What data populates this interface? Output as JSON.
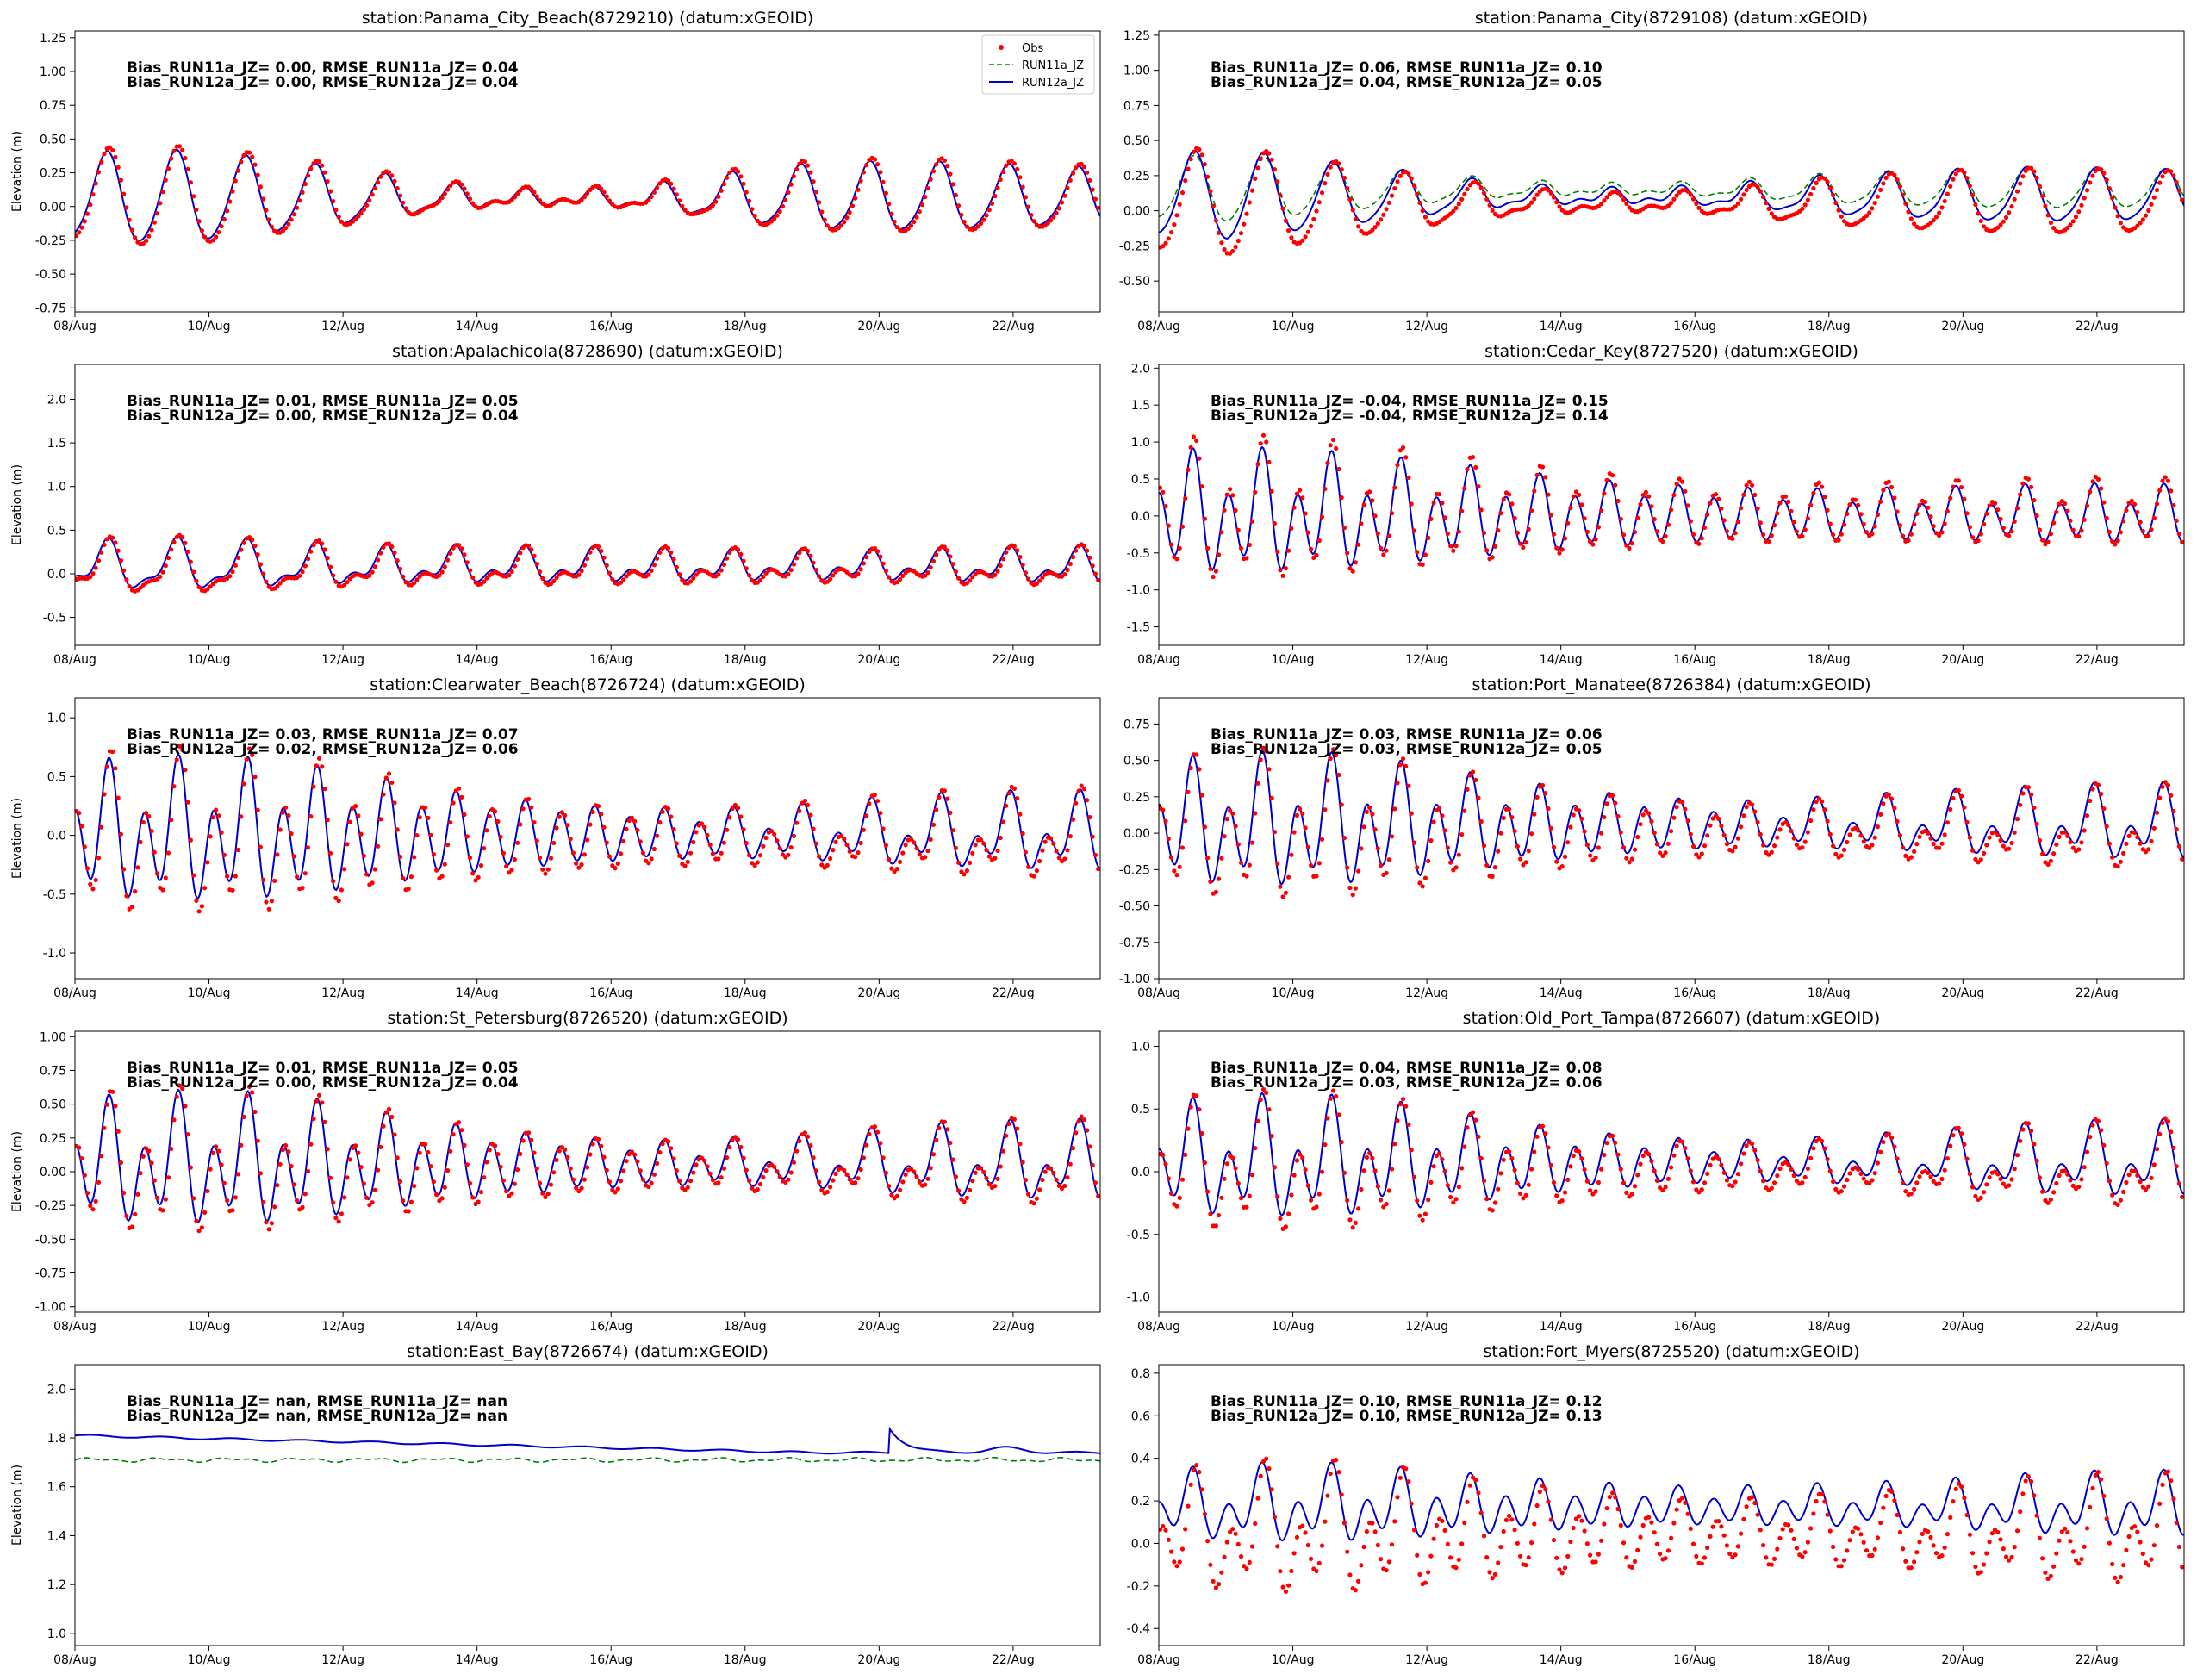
{
  "figure": {
    "series_styles": [
      {
        "key": "obs",
        "label": "Obs",
        "color": "#ff0000",
        "style": "dots"
      },
      {
        "key": "run11a",
        "label": "RUN11a_JZ",
        "color": "#008000",
        "style": "dashed"
      },
      {
        "key": "run12a",
        "label": "RUN12a_JZ",
        "color": "#0000cc",
        "style": "solid"
      }
    ],
    "legend": {
      "placement": "upper right of first panel",
      "entries": [
        "Obs",
        "RUN11a_JZ",
        "RUN12a_JZ"
      ]
    }
  },
  "chart_data": [
    {
      "type": "line",
      "title": "station:Panama_City_Beach(8729210) (datum:xGEOID)",
      "ylabel": "Elevation (m)",
      "xlim": [
        0,
        15.3
      ],
      "x_tick_labels": [
        "08/Aug",
        "10/Aug",
        "12/Aug",
        "14/Aug",
        "16/Aug",
        "18/Aug",
        "20/Aug",
        "22/Aug"
      ],
      "ylim": [
        -0.78,
        1.3
      ],
      "yticks": [
        "-0.75",
        "-0.50",
        "-0.25",
        "0.00",
        "0.25",
        "0.50",
        "0.75",
        "1.00",
        "1.25"
      ],
      "stats": [
        "Bias_RUN11a_JZ=  0.00, RMSE_RUN11a_JZ=  0.04",
        "Bias_RUN12a_JZ=  0.00, RMSE_RUN12a_JZ=  0.04"
      ],
      "show_legend": true,
      "model": {
        "mean": 0.06,
        "diurnal_amp": [
          0.3,
          0.34,
          0.32,
          0.26,
          0.2,
          0.12,
          0.06,
          0.04,
          0.06,
          0.12,
          0.2,
          0.24,
          0.25,
          0.24,
          0.22,
          0.2
        ],
        "semi_amp": 0.035,
        "phase": 0.45
      },
      "run11_offset": 0.0,
      "obs": {
        "offset": 0.0,
        "amp_scale": 1.08,
        "phase_shift": 0.03
      }
    },
    {
      "type": "line",
      "title": "station:Panama_City(8729108) (datum:xGEOID)",
      "ylabel": "",
      "xlim": [
        0,
        15.3
      ],
      "x_tick_labels": [
        "08/Aug",
        "10/Aug",
        "12/Aug",
        "14/Aug",
        "16/Aug",
        "18/Aug",
        "20/Aug",
        "22/Aug"
      ],
      "ylim": [
        -0.72,
        1.28
      ],
      "yticks": [
        "-0.50",
        "-0.25",
        "0.00",
        "0.25",
        "0.50",
        "0.75",
        "1.00",
        "1.25"
      ],
      "stats": [
        "Bias_RUN11a_JZ=  0.06, RMSE_RUN11a_JZ=  0.10",
        "Bias_RUN12a_JZ=  0.04, RMSE_RUN12a_JZ=  0.05"
      ],
      "show_legend": false,
      "model": {
        "mean": 0.1,
        "diurnal_amp": [
          0.28,
          0.32,
          0.26,
          0.2,
          0.14,
          0.08,
          0.05,
          0.04,
          0.06,
          0.1,
          0.14,
          0.16,
          0.18,
          0.19,
          0.18,
          0.17
        ],
        "semi_amp": 0.03,
        "phase": 0.5
      },
      "run11_offset": 0.05,
      "run11_amp_scale": 0.75,
      "obs": {
        "offset": -0.05,
        "amp_scale": 1.2,
        "phase_shift": 0.04
      }
    },
    {
      "type": "line",
      "title": "station:Apalachicola(8728690) (datum:xGEOID)",
      "ylabel": "Elevation (m)",
      "xlim": [
        0,
        15.3
      ],
      "x_tick_labels": [
        "08/Aug",
        "10/Aug",
        "12/Aug",
        "14/Aug",
        "16/Aug",
        "18/Aug",
        "20/Aug",
        "22/Aug"
      ],
      "ylim": [
        -0.82,
        2.4
      ],
      "yticks": [
        "-0.5",
        "0.0",
        "0.5",
        "1.0",
        "1.5",
        "2.0"
      ],
      "stats": [
        "Bias_RUN11a_JZ=  0.01, RMSE_RUN11a_JZ=  0.05",
        "Bias_RUN12a_JZ=  0.00, RMSE_RUN12a_JZ=  0.04"
      ],
      "show_legend": false,
      "model": {
        "mean": 0.08,
        "diurnal_amp": [
          0.22,
          0.26,
          0.25,
          0.22,
          0.18,
          0.16,
          0.15,
          0.15,
          0.14,
          0.13,
          0.12,
          0.11,
          0.12,
          0.14,
          0.15,
          0.16
        ],
        "semi_amp": 0.1,
        "phase": 0.45
      },
      "run11_offset": 0.0,
      "obs": {
        "offset": -0.02,
        "amp_scale": 1.1,
        "phase_shift": 0.03
      }
    },
    {
      "type": "line",
      "title": "station:Cedar_Key(8727520) (datum:xGEOID)",
      "ylabel": "",
      "xlim": [
        0,
        15.3
      ],
      "x_tick_labels": [
        "08/Aug",
        "10/Aug",
        "12/Aug",
        "14/Aug",
        "16/Aug",
        "18/Aug",
        "20/Aug",
        "22/Aug"
      ],
      "ylim": [
        -1.75,
        2.05
      ],
      "yticks": [
        "-1.5",
        "-1.0",
        "-0.5",
        "0.0",
        "0.5",
        "1.0",
        "1.5",
        "2.0"
      ],
      "stats": [
        "Bias_RUN11a_JZ= -0.04, RMSE_RUN11a_JZ=  0.15",
        "Bias_RUN12a_JZ= -0.04, RMSE_RUN12a_JZ=  0.14"
      ],
      "show_legend": false,
      "model": {
        "mean": 0.0,
        "diurnal_amp": [
          0.3,
          0.34,
          0.33,
          0.3,
          0.26,
          0.2,
          0.14,
          0.1,
          0.08,
          0.08,
          0.1,
          0.12,
          0.14,
          0.15,
          0.15,
          0.14
        ],
        "semi_amp": 0.55,
        "semi_amp_decay": [
          0.6,
          0.62,
          0.6,
          0.56,
          0.5,
          0.45,
          0.4,
          0.36,
          0.32,
          0.3,
          0.28,
          0.28,
          0.28,
          0.3,
          0.3,
          0.3
        ],
        "phase": 0.45
      },
      "run11_offset": 0.0,
      "obs": {
        "offset": 0.02,
        "amp_scale": 1.15,
        "phase_shift": 0.02
      }
    },
    {
      "type": "line",
      "title": "station:Clearwater_Beach(8726724) (datum:xGEOID)",
      "ylabel": "Elevation (m)",
      "xlim": [
        0,
        15.3
      ],
      "x_tick_labels": [
        "08/Aug",
        "10/Aug",
        "12/Aug",
        "14/Aug",
        "16/Aug",
        "18/Aug",
        "20/Aug",
        "22/Aug"
      ],
      "ylim": [
        -1.22,
        1.17
      ],
      "yticks": [
        "-1.0",
        "-0.5",
        "0.0",
        "0.5",
        "1.0"
      ],
      "stats": [
        "Bias_RUN11a_JZ=  0.03, RMSE_RUN11a_JZ=  0.07",
        "Bias_RUN12a_JZ=  0.02, RMSE_RUN12a_JZ=  0.06"
      ],
      "show_legend": false,
      "model": {
        "mean": 0.0,
        "diurnal_amp": [
          0.22,
          0.26,
          0.25,
          0.22,
          0.16,
          0.1,
          0.06,
          0.04,
          0.04,
          0.06,
          0.1,
          0.14,
          0.18,
          0.2,
          0.2,
          0.2
        ],
        "semi_amp": 0.42,
        "semi_amp_decay": [
          0.42,
          0.44,
          0.45,
          0.44,
          0.4,
          0.34,
          0.28,
          0.24,
          0.2,
          0.18,
          0.16,
          0.16,
          0.17,
          0.18,
          0.2,
          0.2
        ],
        "phase": 0.45
      },
      "run11_offset": 0.0,
      "obs": {
        "offset": -0.03,
        "amp_scale": 1.15,
        "phase_shift": 0.03
      }
    },
    {
      "type": "line",
      "title": "station:Port_Manatee(8726384) (datum:xGEOID)",
      "ylabel": "",
      "xlim": [
        0,
        15.3
      ],
      "x_tick_labels": [
        "08/Aug",
        "10/Aug",
        "12/Aug",
        "14/Aug",
        "16/Aug",
        "18/Aug",
        "20/Aug",
        "22/Aug"
      ],
      "ylim": [
        -1.0,
        0.93
      ],
      "yticks": [
        "-1.00",
        "-0.75",
        "-0.50",
        "-0.25",
        "0.00",
        "0.25",
        "0.50",
        "0.75"
      ],
      "stats": [
        "Bias_RUN11a_JZ=  0.03, RMSE_RUN11a_JZ=  0.06",
        "Bias_RUN12a_JZ=  0.03, RMSE_RUN12a_JZ=  0.05"
      ],
      "show_legend": false,
      "model": {
        "mean": 0.05,
        "diurnal_amp": [
          0.16,
          0.2,
          0.2,
          0.18,
          0.14,
          0.1,
          0.06,
          0.04,
          0.04,
          0.06,
          0.1,
          0.12,
          0.14,
          0.15,
          0.16,
          0.16
        ],
        "semi_amp": 0.3,
        "semi_amp_decay": [
          0.3,
          0.32,
          0.33,
          0.32,
          0.28,
          0.24,
          0.2,
          0.17,
          0.14,
          0.12,
          0.12,
          0.12,
          0.13,
          0.14,
          0.15,
          0.15
        ],
        "phase": 0.45
      },
      "run11_offset": 0.0,
      "obs": {
        "offset": -0.04,
        "amp_scale": 1.12,
        "phase_shift": 0.03
      }
    },
    {
      "type": "line",
      "title": "station:St_Petersburg(8726520) (datum:xGEOID)",
      "ylabel": "Elevation (m)",
      "xlim": [
        0,
        15.3
      ],
      "x_tick_labels": [
        "08/Aug",
        "10/Aug",
        "12/Aug",
        "14/Aug",
        "16/Aug",
        "18/Aug",
        "20/Aug",
        "22/Aug"
      ],
      "ylim": [
        -1.04,
        1.04
      ],
      "yticks": [
        "-1.00",
        "-0.75",
        "-0.50",
        "-0.25",
        "0.00",
        "0.25",
        "0.50",
        "0.75",
        "1.00"
      ],
      "stats": [
        "Bias_RUN11a_JZ=  0.01, RMSE_RUN11a_JZ=  0.05",
        "Bias_RUN12a_JZ=  0.00, RMSE_RUN12a_JZ=  0.04"
      ],
      "show_legend": false,
      "model": {
        "mean": 0.05,
        "diurnal_amp": [
          0.18,
          0.22,
          0.22,
          0.2,
          0.16,
          0.1,
          0.06,
          0.04,
          0.04,
          0.06,
          0.1,
          0.13,
          0.16,
          0.17,
          0.18,
          0.18
        ],
        "semi_amp": 0.32,
        "semi_amp_decay": [
          0.32,
          0.34,
          0.35,
          0.34,
          0.3,
          0.26,
          0.22,
          0.18,
          0.15,
          0.13,
          0.12,
          0.12,
          0.14,
          0.16,
          0.17,
          0.17
        ],
        "phase": 0.45
      },
      "run11_offset": 0.0,
      "obs": {
        "offset": -0.02,
        "amp_scale": 1.1,
        "phase_shift": 0.03
      }
    },
    {
      "type": "line",
      "title": "station:Old_Port_Tampa(8726607) (datum:xGEOID)",
      "ylabel": "",
      "xlim": [
        0,
        15.3
      ],
      "x_tick_labels": [
        "08/Aug",
        "10/Aug",
        "12/Aug",
        "14/Aug",
        "16/Aug",
        "18/Aug",
        "20/Aug",
        "22/Aug"
      ],
      "ylim": [
        -1.12,
        1.12
      ],
      "yticks": [
        "-1.0",
        "-0.5",
        "0.0",
        "0.5",
        "1.0"
      ],
      "stats": [
        "Bias_RUN11a_JZ=  0.04, RMSE_RUN11a_JZ=  0.08",
        "Bias_RUN12a_JZ=  0.03, RMSE_RUN12a_JZ=  0.06"
      ],
      "show_legend": false,
      "model": {
        "mean": 0.07,
        "diurnal_amp": [
          0.2,
          0.24,
          0.24,
          0.22,
          0.18,
          0.12,
          0.07,
          0.05,
          0.05,
          0.07,
          0.11,
          0.14,
          0.17,
          0.18,
          0.19,
          0.19
        ],
        "semi_amp": 0.3,
        "semi_amp_decay": [
          0.3,
          0.32,
          0.33,
          0.32,
          0.28,
          0.24,
          0.2,
          0.17,
          0.14,
          0.12,
          0.12,
          0.12,
          0.14,
          0.16,
          0.17,
          0.17
        ],
        "phase": 0.45
      },
      "run11_offset": 0.0,
      "obs": {
        "offset": -0.05,
        "amp_scale": 1.15,
        "phase_shift": 0.03
      }
    },
    {
      "type": "line",
      "title": "station:East_Bay(8726674) (datum:xGEOID)",
      "ylabel": "Elevation (m)",
      "xlim": [
        0,
        15.3
      ],
      "x_tick_labels": [
        "08/Aug",
        "10/Aug",
        "12/Aug",
        "14/Aug",
        "16/Aug",
        "18/Aug",
        "20/Aug",
        "22/Aug"
      ],
      "ylim": [
        0.95,
        2.1
      ],
      "yticks": [
        "1.0",
        "1.2",
        "1.4",
        "1.6",
        "1.8",
        "2.0"
      ],
      "stats": [
        "Bias_RUN11a_JZ=   nan, RMSE_RUN11a_JZ=   nan",
        "Bias_RUN12a_JZ=   nan, RMSE_RUN12a_JZ=   nan"
      ],
      "show_legend": false,
      "flat": {
        "run12_start": 1.81,
        "run12_end": 1.74,
        "spike_day": 12.15,
        "spike_peak": 1.84,
        "bump_day": 13.9,
        "bump_peak": 1.76,
        "run11_level": 1.71
      },
      "obs": null
    },
    {
      "type": "line",
      "title": "station:Fort_Myers(8725520) (datum:xGEOID)",
      "ylabel": "",
      "xlim": [
        0,
        15.3
      ],
      "x_tick_labels": [
        "08/Aug",
        "10/Aug",
        "12/Aug",
        "14/Aug",
        "16/Aug",
        "18/Aug",
        "20/Aug",
        "22/Aug"
      ],
      "ylim": [
        -0.48,
        0.84
      ],
      "yticks": [
        "-0.4",
        "-0.2",
        "0.0",
        "0.2",
        "0.4",
        "0.6",
        "0.8"
      ],
      "stats": [
        "Bias_RUN11a_JZ=  0.10, RMSE_RUN11a_JZ=  0.12",
        "Bias_RUN12a_JZ=  0.10, RMSE_RUN12a_JZ=  0.13"
      ],
      "show_legend": false,
      "model": {
        "mean": 0.17,
        "diurnal_amp": [
          0.08,
          0.1,
          0.1,
          0.09,
          0.07,
          0.05,
          0.04,
          0.03,
          0.03,
          0.04,
          0.05,
          0.06,
          0.07,
          0.08,
          0.08,
          0.08
        ],
        "semi_amp": 0.09,
        "semi_amp_decay": [
          0.1,
          0.11,
          0.12,
          0.12,
          0.11,
          0.1,
          0.09,
          0.08,
          0.07,
          0.07,
          0.07,
          0.07,
          0.08,
          0.09,
          0.1,
          0.1
        ],
        "phase": 0.45
      },
      "run11_offset": 0.0,
      "obs": {
        "offset": -0.13,
        "amp_scale": 1.7,
        "phase_shift": 0.05
      }
    }
  ]
}
